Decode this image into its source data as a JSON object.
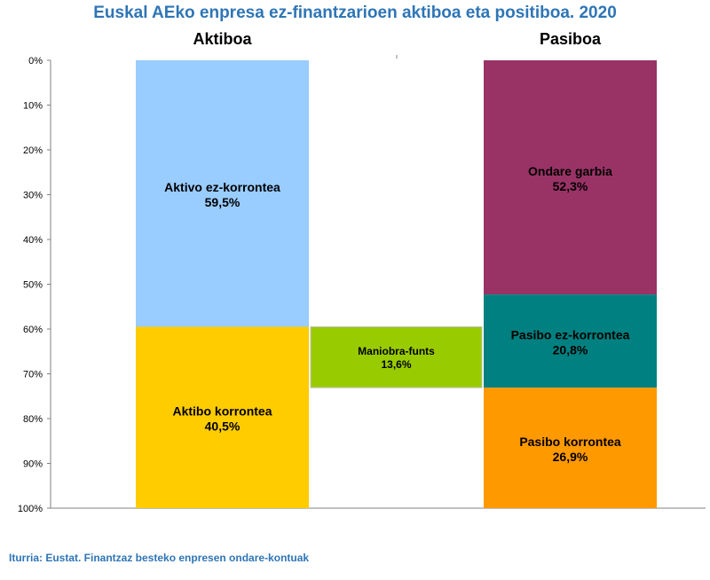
{
  "chart_data": {
    "type": "stacked-bar",
    "title": "Euskal AEko enpresa ez-finantzarioen aktiboa eta positiboa. 2020",
    "source": "Iturria: Eustat. Finantzaz besteko enpresen ondare-kontuak",
    "ylim": [
      0,
      100
    ],
    "y_ticks": [
      "0%",
      "10%",
      "20%",
      "30%",
      "40%",
      "50%",
      "60%",
      "70%",
      "80%",
      "90%",
      "100%"
    ],
    "y_axis_inverted": true,
    "grid": false,
    "columns": [
      {
        "name": "Aktiboa",
        "segments": [
          {
            "label": "Aktivo ez-korrontea",
            "value_label": "59,5%",
            "value": 59.5,
            "color": "#99ccff"
          },
          {
            "label": "Aktibo korrontea",
            "value_label": "40,5%",
            "value": 40.5,
            "color": "#ffcc00"
          }
        ]
      },
      {
        "name": "Pasiboa",
        "segments": [
          {
            "label": "Ondare garbia",
            "value_label": "52,3%",
            "value": 52.3,
            "color": "#993366"
          },
          {
            "label": "Pasibo ez-korrontea",
            "value_label": "20,8%",
            "value": 20.8,
            "color": "#008080"
          },
          {
            "label": "Pasibo korrontea",
            "value_label": "26,9%",
            "value": 26.9,
            "color": "#ff9900"
          }
        ]
      }
    ],
    "working_capital": {
      "label": "Maniobra-funts",
      "value_label": "13,6%",
      "value": 13.6,
      "start": 59.5,
      "color": "#99cc00"
    }
  }
}
